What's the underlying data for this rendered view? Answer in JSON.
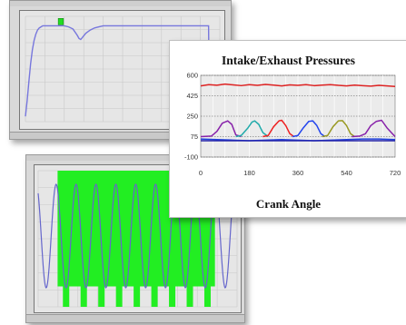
{
  "chart_data": [
    {
      "type": "line",
      "title": "",
      "xlabel": "",
      "ylabel": "",
      "series": [
        {
          "name": "",
          "x": [
            0,
            2,
            4,
            6,
            8,
            10,
            12,
            14,
            16,
            18,
            20,
            25,
            30,
            35,
            40,
            45,
            50,
            55,
            60,
            62,
            64,
            66,
            70,
            75,
            80,
            85,
            90,
            100,
            110,
            120,
            130,
            140,
            150,
            160,
            170,
            180,
            190,
            200,
            210,
            212,
            213
          ],
          "y": [
            5,
            20,
            38,
            55,
            68,
            77,
            83,
            87,
            89,
            90,
            91,
            91,
            91,
            91,
            91,
            91,
            90,
            88,
            82,
            79,
            78,
            80,
            84,
            87,
            89,
            90,
            91,
            91,
            91,
            91,
            91,
            91,
            91,
            91,
            91,
            91,
            91,
            91,
            91,
            91,
            0
          ]
        }
      ],
      "highlight": {
        "x": [
          38,
          44
        ],
        "y": [
          92,
          98
        ],
        "color": "#22dd22"
      },
      "xlim": [
        0,
        225
      ],
      "ylim": [
        0,
        100
      ],
      "grid": true,
      "colors": {
        "line": "#7777dd",
        "plot_bg": "#e6e6e6",
        "frame": "#d9d9d9"
      }
    },
    {
      "type": "line",
      "title": "Intake/Exhaust Pressures",
      "xlabel": "Crank Angle",
      "ylabel": "",
      "xlim": [
        0,
        720
      ],
      "ylim": [
        -100,
        600
      ],
      "xticks": [
        0,
        180,
        360,
        540,
        720
      ],
      "yticks": [
        600,
        425,
        250,
        75,
        -100
      ],
      "grid": true,
      "series": [
        {
          "name": "",
          "color": "#dd2222",
          "x": [
            0,
            30,
            60,
            90,
            120,
            150,
            180,
            210,
            240,
            270,
            300,
            330,
            360,
            390,
            420,
            450,
            480,
            510,
            540,
            570,
            600,
            630,
            660,
            690,
            720
          ],
          "y": [
            510,
            520,
            515,
            525,
            518,
            512,
            520,
            514,
            522,
            516,
            510,
            518,
            514,
            520,
            512,
            516,
            520,
            514,
            510,
            516,
            512,
            508,
            514,
            510,
            505
          ]
        },
        {
          "name": "",
          "color": "#8822aa",
          "x": [
            0,
            40,
            60,
            80,
            100,
            115,
            130,
            150
          ],
          "y": [
            75,
            80,
            120,
            190,
            210,
            180,
            90,
            75
          ]
        },
        {
          "name": "",
          "color": "#22aaaa",
          "x": [
            130,
            150,
            175,
            190,
            200,
            215,
            230,
            250
          ],
          "y": [
            75,
            85,
            150,
            200,
            210,
            180,
            110,
            75
          ]
        },
        {
          "name": "",
          "color": "#ee2222",
          "x": [
            230,
            250,
            270,
            290,
            300,
            315,
            330,
            345
          ],
          "y": [
            75,
            85,
            160,
            210,
            215,
            170,
            100,
            75
          ]
        },
        {
          "name": "",
          "color": "#2244ee",
          "x": [
            340,
            360,
            380,
            400,
            415,
            430,
            445,
            460
          ],
          "y": [
            75,
            85,
            150,
            205,
            210,
            170,
            100,
            75
          ]
        },
        {
          "name": "",
          "color": "#999922",
          "x": [
            450,
            470,
            490,
            510,
            525,
            540,
            555,
            570
          ],
          "y": [
            75,
            85,
            160,
            210,
            212,
            170,
            100,
            75
          ]
        },
        {
          "name": "",
          "color": "#8822aa",
          "x": [
            560,
            590,
            610,
            630,
            650,
            670,
            690,
            720
          ],
          "y": [
            75,
            80,
            100,
            170,
            205,
            215,
            150,
            75
          ]
        },
        {
          "name": "",
          "color": "#2244dd",
          "x": [
            0,
            60,
            120,
            180,
            240,
            300,
            360,
            420,
            480,
            540,
            600,
            660,
            720
          ],
          "y": [
            55,
            50,
            45,
            40,
            45,
            50,
            45,
            40,
            45,
            50,
            55,
            55,
            50
          ]
        },
        {
          "name": "",
          "color": "#2222aa",
          "x": [
            0,
            720
          ],
          "y": [
            40,
            40
          ]
        }
      ],
      "colors": {
        "plot_bg": "#ebebeb",
        "grid": "#ffffff"
      }
    },
    {
      "type": "line",
      "title": "",
      "xlabel": "",
      "ylabel": "",
      "xlim": [
        0,
        225
      ],
      "ylim": [
        0,
        100
      ],
      "grid": true,
      "highlight_band": {
        "x": [
          22,
          200
        ],
        "y": [
          0,
          100
        ],
        "color": "#22ee22"
      },
      "pulse_bars": [
        28,
        48,
        68,
        88,
        108,
        128,
        148,
        168,
        188
      ],
      "series": [
        {
          "name": "",
          "cycles": 10,
          "amplitude": 38,
          "offset": 52,
          "color": "#6666cc"
        }
      ],
      "colors": {
        "plot_bg": "#e6e6e6",
        "frame": "#d9d9d9"
      }
    }
  ]
}
